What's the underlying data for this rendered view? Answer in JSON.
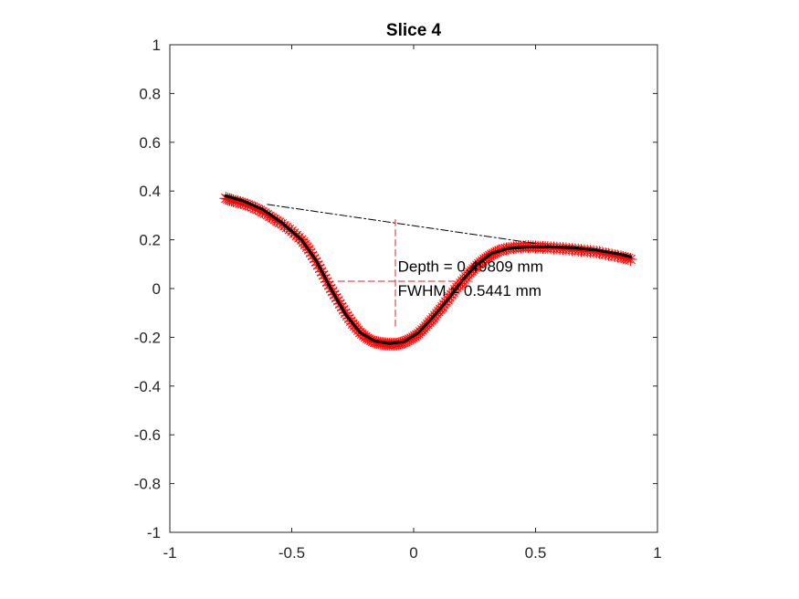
{
  "chart_data": {
    "type": "line",
    "title": "Slice 4",
    "xlabel": "",
    "ylabel": "",
    "xlim": [
      -1,
      1
    ],
    "ylim": [
      -1,
      1
    ],
    "xticks": [
      -1,
      -0.5,
      0,
      0.5,
      1
    ],
    "xtick_labels": [
      "-1",
      "-0.5",
      "0",
      "0.5",
      "1"
    ],
    "yticks": [
      -1,
      -0.8,
      -0.6,
      -0.4,
      -0.2,
      0,
      0.2,
      0.4,
      0.6,
      0.8,
      1
    ],
    "ytick_labels": [
      "-1",
      "-0.8",
      "-0.6",
      "-0.4",
      "-0.2",
      "0",
      "0.2",
      "0.4",
      "0.6",
      "0.8",
      "1"
    ],
    "grid": false,
    "series": [
      {
        "name": "profile-data",
        "style": "red-star-markers",
        "color": "#ff0000",
        "x": [
          -0.77,
          -0.74,
          -0.7,
          -0.66,
          -0.62,
          -0.58,
          -0.54,
          -0.5,
          -0.46,
          -0.43,
          -0.4,
          -0.37,
          -0.34,
          -0.31,
          -0.28,
          -0.25,
          -0.22,
          -0.19,
          -0.16,
          -0.13,
          -0.1,
          -0.07,
          -0.04,
          -0.01,
          0.02,
          0.05,
          0.08,
          0.11,
          0.14,
          0.17,
          0.2,
          0.23,
          0.26,
          0.29,
          0.32,
          0.35,
          0.39,
          0.43,
          0.47,
          0.51,
          0.55,
          0.6,
          0.65,
          0.7,
          0.75,
          0.8,
          0.85,
          0.89
        ],
        "y": [
          0.37,
          0.36,
          0.35,
          0.335,
          0.315,
          0.29,
          0.265,
          0.235,
          0.2,
          0.16,
          0.11,
          0.055,
          0.0,
          -0.05,
          -0.1,
          -0.145,
          -0.18,
          -0.205,
          -0.22,
          -0.225,
          -0.228,
          -0.228,
          -0.22,
          -0.205,
          -0.185,
          -0.155,
          -0.12,
          -0.085,
          -0.045,
          -0.005,
          0.03,
          0.065,
          0.095,
          0.12,
          0.14,
          0.155,
          0.165,
          0.17,
          0.172,
          0.17,
          0.168,
          0.165,
          0.16,
          0.155,
          0.15,
          0.14,
          0.13,
          0.12
        ]
      },
      {
        "name": "smoothed-fit",
        "style": "black-solid-thick",
        "color": "#000000",
        "x": [
          -0.77,
          -0.7,
          -0.62,
          -0.54,
          -0.46,
          -0.4,
          -0.34,
          -0.28,
          -0.22,
          -0.16,
          -0.1,
          -0.04,
          0.02,
          0.08,
          0.14,
          0.2,
          0.26,
          0.32,
          0.39,
          0.47,
          0.55,
          0.65,
          0.75,
          0.85,
          0.89
        ],
        "y": [
          0.38,
          0.36,
          0.325,
          0.27,
          0.2,
          0.115,
          0.0,
          -0.105,
          -0.18,
          -0.215,
          -0.225,
          -0.218,
          -0.18,
          -0.115,
          -0.045,
          0.035,
          0.1,
          0.145,
          0.165,
          0.17,
          0.172,
          0.168,
          0.158,
          0.14,
          0.13
        ]
      },
      {
        "name": "baseline",
        "style": "black-dash-dot",
        "color": "#000000",
        "x": [
          -0.6,
          0.5
        ],
        "y": [
          0.345,
          0.185
        ]
      },
      {
        "name": "depth-marker",
        "style": "red-dashed",
        "color": "#d62728",
        "x": [
          -0.075,
          -0.075
        ],
        "y": [
          0.283,
          -0.166
        ]
      },
      {
        "name": "fwhm-marker",
        "style": "red-dashed",
        "color": "#d62728",
        "x": [
          -0.31,
          0.24
        ],
        "y": [
          0.03,
          0.03
        ]
      }
    ],
    "annotations": [
      {
        "text": "Depth = 0.49809 mm",
        "x": -0.065,
        "y": 0.07
      },
      {
        "text": "FWHM = 0.5441 mm",
        "x": -0.065,
        "y": -0.03
      }
    ]
  }
}
